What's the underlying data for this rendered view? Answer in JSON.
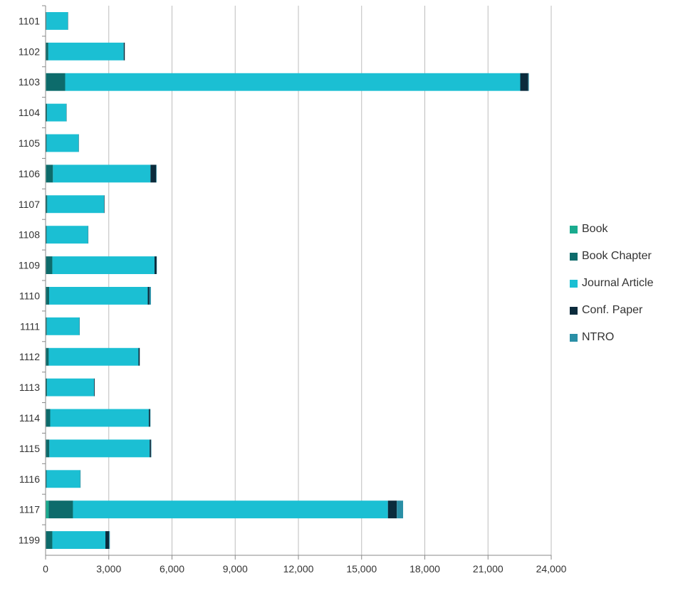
{
  "chart_data": {
    "type": "bar",
    "orientation": "horizontal",
    "stacked": true,
    "categories": [
      "1101",
      "1102",
      "1103",
      "1104",
      "1105",
      "1106",
      "1107",
      "1108",
      "1109",
      "1110",
      "1111",
      "1112",
      "1113",
      "1114",
      "1115",
      "1116",
      "1117",
      "1199"
    ],
    "series": [
      {
        "name": "Book",
        "color": "#1aab8f",
        "values": [
          10,
          20,
          30,
          10,
          10,
          30,
          10,
          10,
          20,
          20,
          10,
          20,
          10,
          20,
          20,
          10,
          150,
          20
        ]
      },
      {
        "name": "Book Chapter",
        "color": "#0d6b6b",
        "values": [
          30,
          110,
          900,
          60,
          40,
          320,
          70,
          40,
          300,
          150,
          50,
          130,
          60,
          200,
          160,
          40,
          1150,
          300
        ]
      },
      {
        "name": "Journal Article",
        "color": "#1bbfd3",
        "values": [
          1020,
          3580,
          21600,
          920,
          1520,
          4630,
          2700,
          1970,
          4850,
          4680,
          1550,
          4260,
          2230,
          4680,
          4760,
          1600,
          14950,
          2520
        ]
      },
      {
        "name": "Conf. Paper",
        "color": "#0b2b3c",
        "values": [
          10,
          50,
          380,
          10,
          10,
          270,
          20,
          10,
          100,
          80,
          10,
          60,
          30,
          60,
          60,
          10,
          420,
          170
        ]
      },
      {
        "name": "NTRO",
        "color": "#2a8fa6",
        "values": [
          0,
          0,
          30,
          0,
          0,
          20,
          0,
          0,
          10,
          70,
          0,
          0,
          0,
          20,
          20,
          0,
          300,
          40
        ]
      }
    ],
    "xlim": [
      0,
      24000
    ],
    "xticks": [
      "0",
      "3,000",
      "6,000",
      "9,000",
      "12,000",
      "15,000",
      "18,000",
      "21,000",
      "24,000"
    ],
    "grid": "vertical",
    "legend_position": "right"
  }
}
